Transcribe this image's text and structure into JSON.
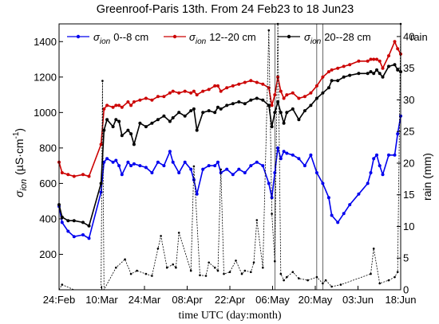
{
  "chart_data": {
    "type": "line",
    "title": "Greenroof-Paris 13th. From 24 Feb23 to 18 Jun23",
    "xlabel": "time UTC (day:month)",
    "ylabel_symbol": "σ",
    "ylabel_sub": "ion",
    "ylabel_units": "(µS·cm",
    "ylabel_exp": "-1",
    "ylabel_close": ")",
    "y2label": "rain (mm)",
    "y2legend": "rain",
    "x_ticks": [
      "24:Feb",
      "10:Mar",
      "24:Mar",
      "08:Apr",
      "22:Apr",
      "06:May",
      "20:May",
      "03:Jun",
      "18:Jun"
    ],
    "xlim_days": [
      0,
      114
    ],
    "ylim": [
      0,
      1500
    ],
    "y_ticks": [
      200,
      400,
      600,
      800,
      1000,
      1200,
      1400
    ],
    "y2lim": [
      0,
      42
    ],
    "y2_ticks": [
      0,
      5,
      10,
      15,
      20,
      25,
      30,
      35,
      40
    ],
    "grid": false,
    "legend_position": "top",
    "series": [
      {
        "name_symbol": "σ",
        "name_sub": "ion",
        "name_rest": "0--8 cm",
        "color": "#0000ee",
        "x_day": [
          0,
          1,
          3,
          5,
          8,
          10,
          14,
          15,
          16,
          18,
          19,
          20,
          21,
          23,
          24,
          25,
          27,
          29,
          31,
          33,
          35,
          37,
          38,
          40,
          42,
          44,
          45,
          46,
          48,
          50,
          52,
          53,
          54,
          56,
          58,
          60,
          62,
          64,
          66,
          68,
          70,
          71,
          72,
          73,
          74,
          75,
          76,
          78,
          80,
          82,
          84,
          86,
          88,
          90,
          91,
          93,
          95,
          97,
          100,
          103,
          104,
          105,
          106,
          107,
          108,
          110,
          112,
          113,
          114
        ],
        "values": [
          470,
          380,
          330,
          300,
          310,
          290,
          550,
          720,
          740,
          720,
          730,
          700,
          650,
          720,
          700,
          710,
          700,
          690,
          660,
          720,
          700,
          780,
          720,
          660,
          720,
          680,
          620,
          540,
          680,
          700,
          700,
          720,
          660,
          680,
          650,
          680,
          660,
          700,
          720,
          700,
          600,
          520,
          660,
          800,
          740,
          780,
          770,
          760,
          740,
          700,
          760,
          660,
          600,
          520,
          420,
          380,
          430,
          480,
          540,
          600,
          660,
          740,
          760,
          700,
          650,
          760,
          760,
          880,
          980
        ]
      },
      {
        "name_symbol": "σ",
        "name_sub": "ion",
        "name_rest": "12--20 cm",
        "color": "#cc0000",
        "x_day": [
          0,
          1,
          3,
          5,
          8,
          10,
          14,
          15,
          16,
          18,
          19,
          20,
          21,
          23,
          24,
          25,
          27,
          29,
          31,
          33,
          35,
          37,
          38,
          40,
          42,
          44,
          45,
          46,
          48,
          50,
          52,
          53,
          54,
          56,
          58,
          60,
          62,
          64,
          66,
          68,
          70,
          71,
          72,
          73,
          74,
          75,
          76,
          78,
          80,
          82,
          84,
          86,
          88,
          90,
          91,
          93,
          95,
          97,
          100,
          103,
          104,
          105,
          106,
          107,
          108,
          110,
          112,
          113,
          114
        ],
        "values": [
          720,
          660,
          650,
          640,
          650,
          640,
          820,
          1020,
          1040,
          1030,
          1040,
          1040,
          1030,
          1060,
          1040,
          1060,
          1070,
          1080,
          1070,
          1090,
          1090,
          1110,
          1120,
          1110,
          1120,
          1110,
          1120,
          1100,
          1120,
          1130,
          1150,
          1150,
          1120,
          1140,
          1150,
          1160,
          1170,
          1180,
          1170,
          1160,
          1140,
          1040,
          1100,
          1200,
          1120,
          1080,
          1100,
          1110,
          1080,
          1090,
          1110,
          1150,
          1200,
          1230,
          1240,
          1250,
          1260,
          1270,
          1290,
          1290,
          1300,
          1300,
          1300,
          1290,
          1250,
          1320,
          1400,
          1360,
          1330
        ]
      },
      {
        "name_symbol": "σ",
        "name_sub": "ion",
        "name_rest": "20--28 cm",
        "color": "#000000",
        "x_day": [
          0,
          1,
          3,
          5,
          8,
          10,
          14,
          15,
          16,
          18,
          19,
          20,
          21,
          23,
          24,
          25,
          27,
          29,
          31,
          33,
          35,
          37,
          38,
          40,
          42,
          44,
          45,
          46,
          48,
          50,
          52,
          53,
          54,
          56,
          58,
          60,
          62,
          64,
          66,
          68,
          70,
          71,
          72,
          73,
          74,
          75,
          76,
          78,
          80,
          82,
          84,
          86,
          88,
          90,
          91,
          93,
          95,
          97,
          100,
          103,
          104,
          105,
          106,
          107,
          108,
          110,
          112,
          113,
          114
        ],
        "values": [
          480,
          410,
          390,
          390,
          380,
          360,
          600,
          900,
          960,
          920,
          960,
          950,
          870,
          900,
          880,
          820,
          940,
          920,
          940,
          960,
          980,
          950,
          970,
          1000,
          980,
          1010,
          1020,
          900,
          1000,
          1010,
          1000,
          1030,
          1020,
          1040,
          1050,
          1060,
          1050,
          1070,
          1080,
          1070,
          1040,
          920,
          1000,
          1060,
          1000,
          940,
          1000,
          1020,
          960,
          1010,
          1040,
          1080,
          1110,
          1140,
          1180,
          1180,
          1200,
          1210,
          1220,
          1220,
          1230,
          1220,
          1240,
          1220,
          1200,
          1260,
          1270,
          1240,
          1230
        ]
      }
    ],
    "rain": {
      "name": "rain",
      "color": "#000000",
      "x_day": [
        0,
        1,
        5,
        9,
        14,
        14.5,
        15,
        19,
        22,
        24,
        26,
        29,
        31,
        33,
        34,
        36,
        38,
        39,
        40,
        44,
        45,
        47,
        49,
        50,
        52,
        53,
        54,
        55,
        57,
        59,
        61,
        62,
        64,
        65,
        66,
        68,
        70,
        71,
        72,
        73,
        74,
        75,
        76,
        78,
        80,
        83,
        86,
        88,
        89,
        91,
        94,
        104,
        105,
        107,
        110,
        112,
        113,
        114
      ],
      "values": [
        0,
        0.8,
        0,
        0,
        0,
        33,
        0,
        3.5,
        4.8,
        2.5,
        3,
        2.5,
        2.2,
        6.5,
        8.5,
        3.5,
        4,
        3.5,
        9,
        3,
        19.5,
        2.3,
        2.2,
        4.3,
        3.5,
        3,
        19,
        2.5,
        2.8,
        4.6,
        2.5,
        3,
        2.8,
        4.3,
        11,
        3.5,
        41,
        12,
        4.5,
        42,
        2.5,
        1.5,
        2,
        2.8,
        1.8,
        1.5,
        2,
        1,
        1.5,
        0.5,
        0.8,
        2.5,
        6.5,
        1,
        1.5,
        2,
        2.8,
        42
      ]
    },
    "vertical_lines_day": [
      72,
      86,
      88
    ]
  }
}
